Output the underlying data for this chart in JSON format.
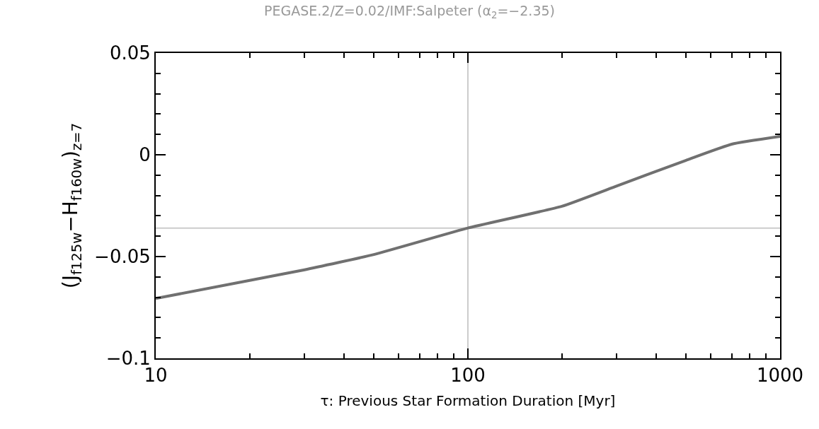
{
  "chart_data": {
    "type": "line",
    "title": "PEGASE.2/Z=0.02/IMF:Salpeter (α$_{2}$=−2.35)",
    "xlabel": "τ: Previous Star Formation Duration [Myr]",
    "ylabel": "(J$_{f125w}$−H$_{f160w}$)$_{z=7}$",
    "log": "x",
    "grid": false,
    "marker": "none",
    "line_style": "solid",
    "x": [
      10,
      20,
      30,
      50,
      100,
      200,
      300,
      500,
      700,
      1000
    ],
    "series": [
      {
        "color": "#707070",
        "values": [
          -0.0706,
          -0.0617,
          -0.0565,
          -0.049,
          -0.036,
          -0.0253,
          -0.0153,
          -0.0027,
          0.0052,
          0.009
        ]
      }
    ],
    "xlim": [
      10,
      1000
    ],
    "xticks": [
      10,
      100,
      1000
    ],
    "ylim": [
      -0.1,
      0.05
    ],
    "yticks": [
      {
        "value": -0.1,
        "label": "−0.1"
      },
      {
        "value": -0.05,
        "label": "−0.05"
      },
      0,
      0.05
    ],
    "ref_lines": [
      {
        "axis": "y",
        "value": -0.036,
        "color": "#cccccc"
      },
      {
        "axis": "x",
        "value": 100,
        "color": "#cccccc"
      }
    ]
  }
}
